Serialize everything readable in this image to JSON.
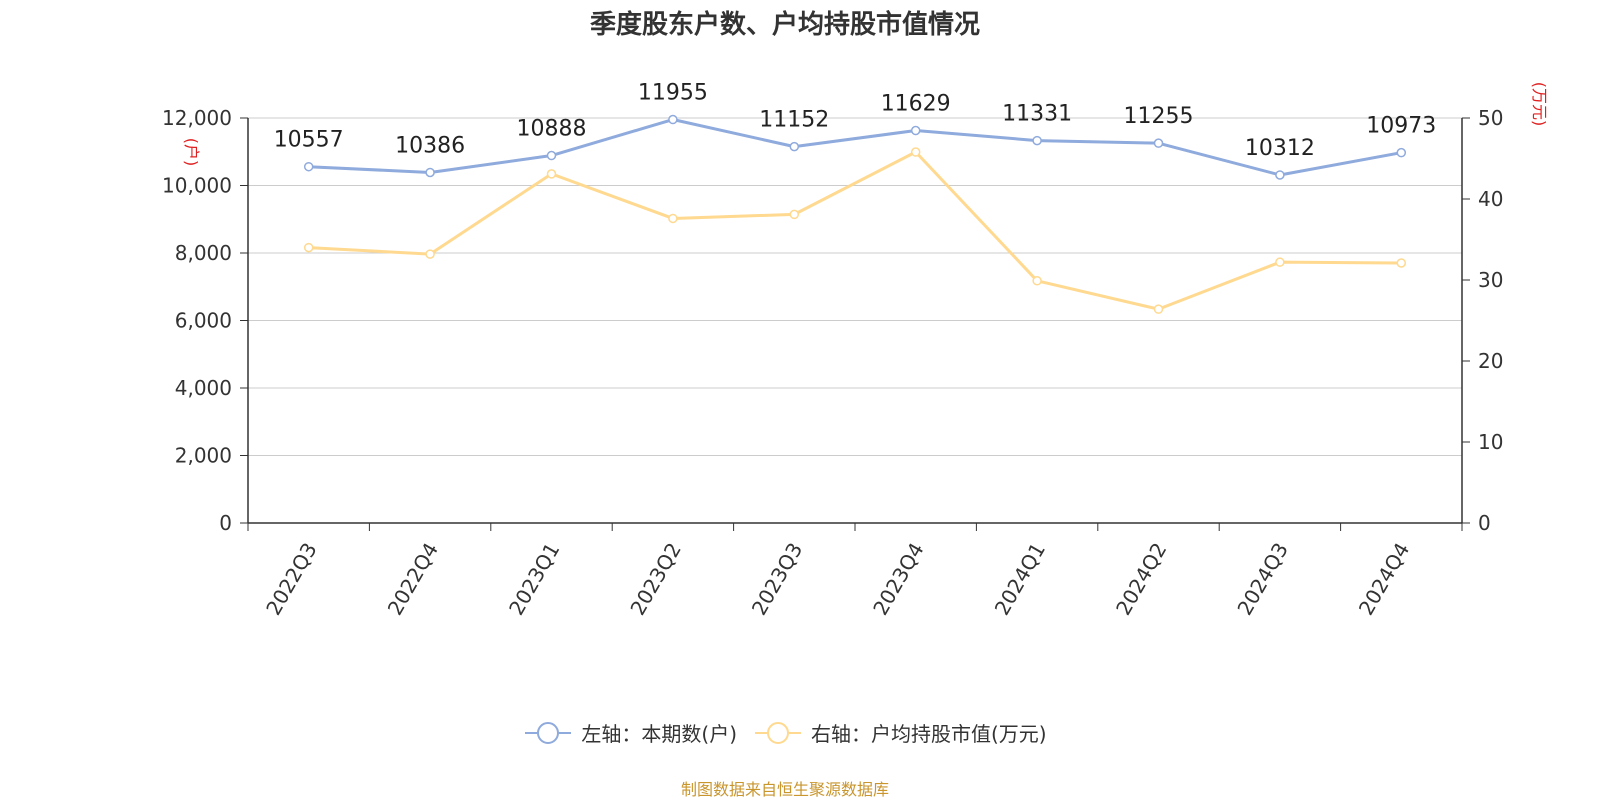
{
  "page": {
    "title": "季度股东户数、户均持股市值情况",
    "source": "制图数据来自恒生聚源数据库"
  },
  "colors": {
    "left_series": "#8faadc",
    "right_series": "#ffd98f",
    "axis_unit": "#e02020",
    "source": "#c9962e"
  },
  "chart_data": {
    "type": "line",
    "title": "季度股东户数、户均持股市值情况",
    "categories": [
      "2022Q3",
      "2022Q4",
      "2023Q1",
      "2023Q2",
      "2023Q3",
      "2023Q4",
      "2024Q1",
      "2024Q2",
      "2024Q3",
      "2024Q4"
    ],
    "left_axis": {
      "unit_label": "(户)",
      "ylim": [
        0,
        12000
      ],
      "ticks": [
        0,
        2000,
        4000,
        6000,
        8000,
        10000,
        12000
      ],
      "tick_labels": [
        "0",
        "2,000",
        "4,000",
        "6,000",
        "8,000",
        "10,000",
        "12,000"
      ]
    },
    "right_axis": {
      "unit_label": "(万元)",
      "ylim": [
        0,
        50
      ],
      "ticks": [
        0,
        10,
        20,
        30,
        40,
        50
      ],
      "tick_labels": [
        "0",
        "10",
        "20",
        "30",
        "40",
        "50"
      ]
    },
    "grid": true,
    "legend_position": "bottom",
    "series": [
      {
        "name": "左轴：本期数(户)",
        "axis": "left",
        "values": [
          10557,
          10386,
          10888,
          11955,
          11152,
          11629,
          11331,
          11255,
          10312,
          10973
        ],
        "data_labels": [
          "10557",
          "10386",
          "10888",
          "11955",
          "11152",
          "11629",
          "11331",
          "11255",
          "10312",
          "10973"
        ]
      },
      {
        "name": "右轴：户均持股市值(万元)",
        "axis": "right",
        "values": [
          34.0,
          33.2,
          43.1,
          37.6,
          38.1,
          45.8,
          29.9,
          26.4,
          32.2,
          32.1
        ]
      }
    ]
  }
}
